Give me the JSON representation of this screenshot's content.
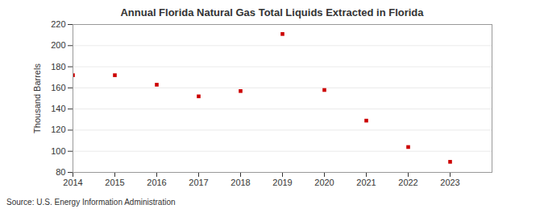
{
  "chart_data": {
    "type": "scatter",
    "title": "Annual Florida Natural Gas Total Liquids Extracted in Florida",
    "y_label": "Thousand Barrels",
    "source": "Source: U.S. Energy Information Administration",
    "x": [
      2014,
      2015,
      2016,
      2017,
      2018,
      2019,
      2020,
      2021,
      2022,
      2023
    ],
    "values": [
      172,
      172,
      163,
      152,
      157,
      211,
      158,
      129,
      104,
      90
    ],
    "color": "#cc0000",
    "marker": "square",
    "xlim": [
      2014,
      2024
    ],
    "xticks": [
      2014,
      2015,
      2016,
      2017,
      2018,
      2019,
      2020,
      2021,
      2022,
      2023
    ],
    "ylim": [
      80,
      220
    ],
    "yticks": [
      80,
      100,
      120,
      140,
      160,
      180,
      200,
      220
    ],
    "grid": true
  }
}
